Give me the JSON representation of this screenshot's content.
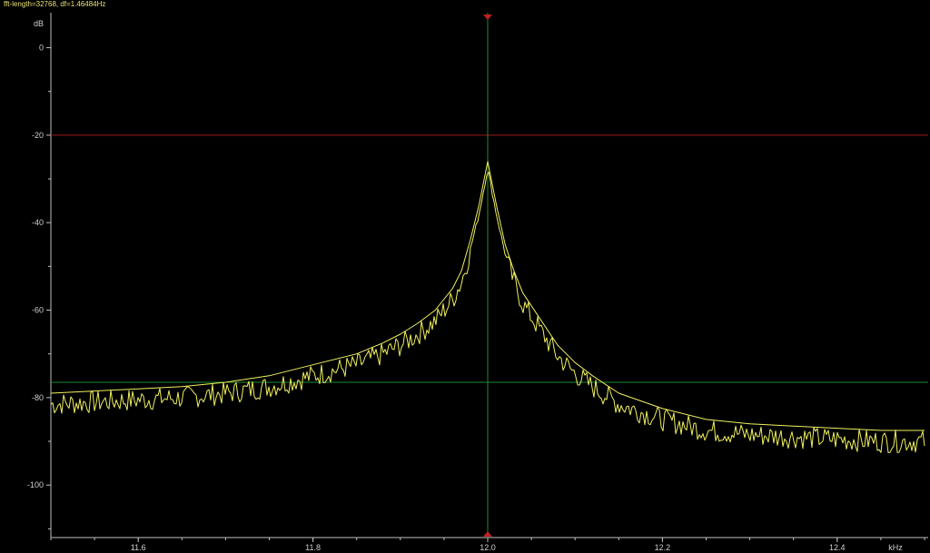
{
  "header": {
    "info": "fft-length=32768, df=1.46484Hz"
  },
  "chart_data": {
    "type": "line",
    "ylabel": "dB",
    "xlabel": "kHz",
    "xlim": [
      11.5,
      12.5
    ],
    "ylim": [
      -112,
      8
    ],
    "x_ticks": [
      11.6,
      11.8,
      12.0,
      12.2,
      12.4
    ],
    "x_tick_labels": [
      "11.6",
      "11.8",
      "12.0",
      "12.2",
      "12.4"
    ],
    "y_ticks": [
      0,
      -20,
      -40,
      -60,
      -80,
      -100
    ],
    "y_tick_labels": [
      "0",
      "-20",
      "-40",
      "-60",
      "-80",
      "-100"
    ],
    "grid": false,
    "cursors": {
      "vertical_x": 12.0,
      "horizontal_red_y": -20,
      "horizontal_green_y": -76.5
    },
    "colors": {
      "background": "#000000",
      "trace": "#f0f060",
      "red_cursor": "#a01818",
      "green_cursor": "#1f8a2a",
      "axes": "#bfbfbf"
    },
    "series": [
      {
        "x": [
          11.5,
          11.55,
          11.6,
          11.65,
          11.7,
          11.75,
          11.8,
          11.85,
          11.88,
          11.9,
          11.92,
          11.94,
          11.96,
          11.97,
          11.98,
          11.99,
          12.0,
          12.01,
          12.02,
          12.03,
          12.04,
          12.06,
          12.08,
          12.1,
          12.12,
          12.15,
          12.2,
          12.25,
          12.3,
          12.35,
          12.4,
          12.45,
          12.5
        ],
        "values": [
          -79,
          -78.5,
          -78,
          -77.5,
          -76.5,
          -75,
          -72.5,
          -70,
          -67.5,
          -65.5,
          -63,
          -60,
          -55,
          -51,
          -44,
          -36,
          -26,
          -36,
          -45,
          -51,
          -56,
          -62,
          -68,
          -72,
          -75,
          -79,
          -82.5,
          -85,
          -86,
          -86.5,
          -87,
          -87.5,
          -87.5
        ]
      },
      {
        "x": [
          11.5,
          11.55,
          11.6,
          11.65,
          11.7,
          11.75,
          11.8,
          11.85,
          11.88,
          11.9,
          11.92,
          11.94,
          11.96,
          11.97,
          11.98,
          11.99,
          12.0,
          12.01,
          12.02,
          12.03,
          12.04,
          12.06,
          12.08,
          12.1,
          12.12,
          12.15,
          12.2,
          12.25,
          12.3,
          12.35,
          12.4,
          12.45,
          12.5
        ],
        "values": [
          -81,
          -80.5,
          -80,
          -79.5,
          -78.5,
          -77,
          -74.5,
          -72,
          -69.5,
          -67.5,
          -65,
          -62,
          -57,
          -53,
          -46,
          -38,
          -27.5,
          -38,
          -47,
          -53,
          -58,
          -64,
          -70,
          -74,
          -77,
          -81,
          -84.5,
          -87,
          -88,
          -88.5,
          -89,
          -89.5,
          -89.5
        ]
      }
    ]
  }
}
